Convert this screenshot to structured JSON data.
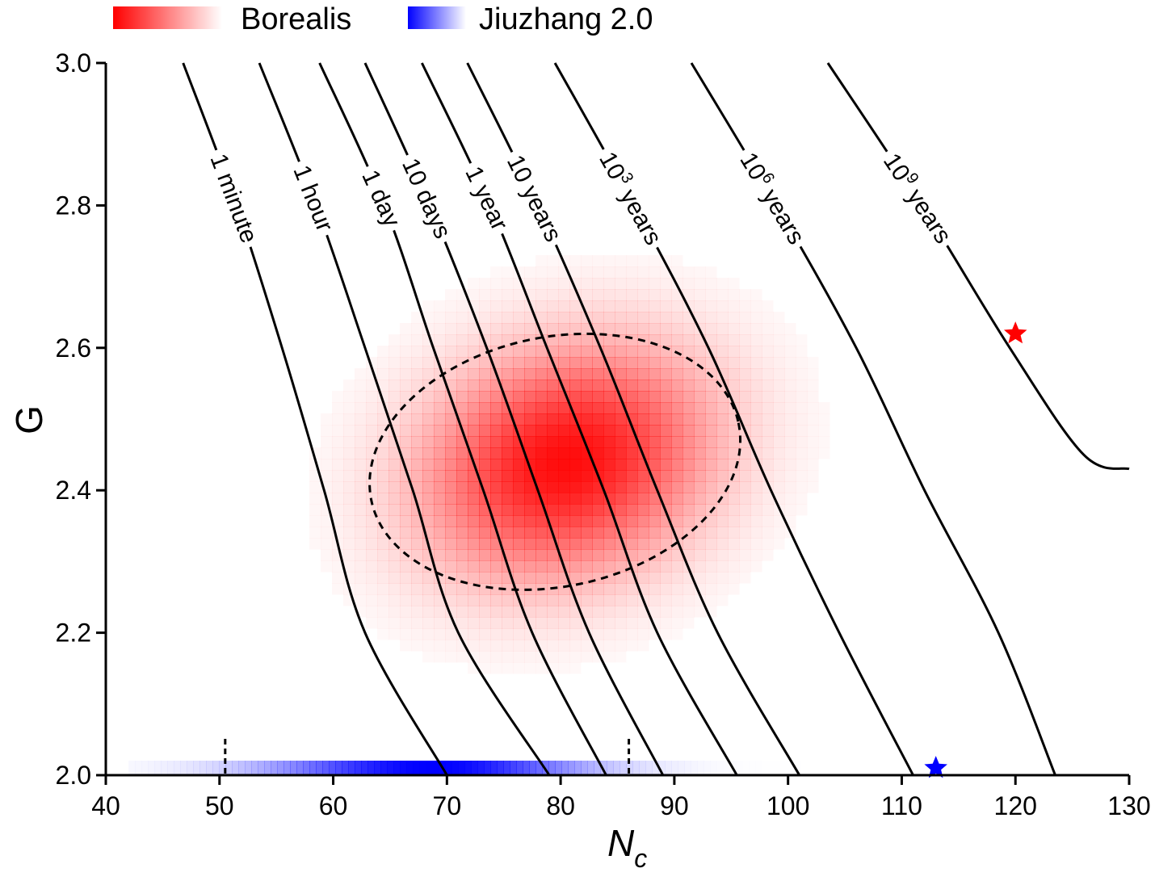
{
  "chart_data": {
    "type": "heatmap",
    "xlabel": {
      "main": "N",
      "sub": "c"
    },
    "ylabel": "G",
    "xlim": [
      40,
      130
    ],
    "ylim": [
      2.0,
      3.0
    ],
    "x_ticks": [
      40,
      50,
      60,
      70,
      80,
      90,
      100,
      110,
      120,
      130
    ],
    "y_ticks": [
      2.0,
      2.2,
      2.4,
      2.6,
      2.8,
      3.0
    ],
    "grid": false,
    "legend_position": "top-left",
    "legend": [
      {
        "label": "Borealis",
        "color": "#ff0000"
      },
      {
        "label": "Jiuzhang 2.0",
        "color": "#0000ff"
      }
    ],
    "colors": {
      "borealis": "#ff0000",
      "jiuzhang": "#0000ff",
      "lines": "#000000"
    },
    "contours": [
      {
        "label": "1 minute",
        "base": "1 minute",
        "exp": "",
        "points": [
          [
            46.8,
            3.0
          ],
          [
            51.5,
            2.8
          ],
          [
            55.5,
            2.6
          ],
          [
            59.2,
            2.4
          ],
          [
            62.8,
            2.2
          ],
          [
            70.0,
            2.0
          ]
        ]
      },
      {
        "label": "1 hour",
        "base": "1 hour",
        "exp": "",
        "points": [
          [
            53.5,
            3.0
          ],
          [
            58.5,
            2.8
          ],
          [
            62.8,
            2.6
          ],
          [
            67.0,
            2.4
          ],
          [
            71.0,
            2.2
          ],
          [
            79.0,
            2.0
          ]
        ]
      },
      {
        "label": "1 day",
        "base": "1 day",
        "exp": "",
        "points": [
          [
            58.8,
            3.0
          ],
          [
            64.5,
            2.8
          ],
          [
            68.8,
            2.6
          ],
          [
            73.2,
            2.4
          ],
          [
            77.5,
            2.2
          ],
          [
            84.0,
            2.0
          ]
        ]
      },
      {
        "label": "10 days",
        "base": "10 days",
        "exp": "",
        "points": [
          [
            62.8,
            3.0
          ],
          [
            68.5,
            2.8
          ],
          [
            73.5,
            2.6
          ],
          [
            78.0,
            2.4
          ],
          [
            82.5,
            2.2
          ],
          [
            89.0,
            2.0
          ]
        ]
      },
      {
        "label": "1 year",
        "base": "1 year",
        "exp": "",
        "points": [
          [
            67.8,
            3.0
          ],
          [
            73.8,
            2.8
          ],
          [
            78.8,
            2.6
          ],
          [
            83.8,
            2.4
          ],
          [
            88.5,
            2.2
          ],
          [
            95.5,
            2.0
          ]
        ]
      },
      {
        "label": "10 years",
        "base": "10 years",
        "exp": "",
        "points": [
          [
            71.8,
            3.0
          ],
          [
            78.0,
            2.8
          ],
          [
            83.5,
            2.6
          ],
          [
            88.5,
            2.4
          ],
          [
            93.8,
            2.2
          ],
          [
            101.0,
            2.0
          ]
        ]
      },
      {
        "label": "10^3 years",
        "base": "10",
        "exp": "3",
        "tail": " years",
        "points": [
          [
            79.5,
            3.0
          ],
          [
            86.5,
            2.8
          ],
          [
            93.0,
            2.6
          ],
          [
            98.5,
            2.4
          ],
          [
            104.5,
            2.2
          ],
          [
            111.0,
            2.0
          ]
        ]
      },
      {
        "label": "10^6 years",
        "base": "10",
        "exp": "6",
        "tail": " years",
        "points": [
          [
            91.5,
            3.0
          ],
          [
            99.0,
            2.8
          ],
          [
            106.0,
            2.6
          ],
          [
            112.0,
            2.4
          ],
          [
            118.5,
            2.2
          ],
          [
            123.5,
            2.0
          ]
        ]
      },
      {
        "label": "10^9 years",
        "base": "10",
        "exp": "9",
        "tail": " years",
        "points": [
          [
            103.5,
            3.0
          ],
          [
            111.8,
            2.8
          ],
          [
            119.5,
            2.6
          ],
          [
            126.0,
            2.45
          ],
          [
            130.0,
            2.43
          ]
        ]
      }
    ],
    "borealis_density": {
      "center": [
        80.5,
        2.44
      ],
      "sigma_x": 8.5,
      "sigma_y": 0.11
    },
    "confidence_ellipse": {
      "center": [
        79.5,
        2.44
      ],
      "semi_axes": [
        16.5,
        0.175
      ],
      "style": "dashed"
    },
    "jiuzhang_band": {
      "x_range": [
        42.0,
        104.0
      ],
      "peak_x": 68.5,
      "y": 2.0
    },
    "jiuzhang_interval": [
      50.5,
      86.0
    ],
    "markers": [
      {
        "series": "Borealis",
        "x": 120.0,
        "y": 2.62,
        "color": "#ff0000",
        "icon": "star"
      },
      {
        "series": "Jiuzhang 2.0",
        "x": 113.0,
        "y": 2.01,
        "color": "#0000ff",
        "icon": "star"
      }
    ]
  }
}
